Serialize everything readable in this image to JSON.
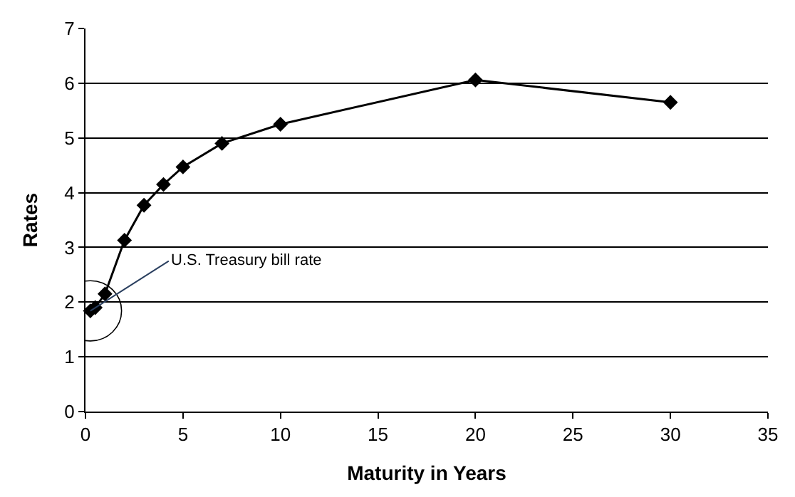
{
  "chart_data": {
    "type": "line",
    "xlabel": "Maturity in Years",
    "ylabel": "Rates",
    "x": [
      0.25,
      0.5,
      1,
      2,
      3,
      4,
      5,
      7,
      10,
      20,
      30
    ],
    "values": [
      1.84,
      1.9,
      2.15,
      3.13,
      3.77,
      4.15,
      4.47,
      4.9,
      5.25,
      6.06,
      5.65
    ],
    "color": "#000000",
    "marker": "diamond",
    "line_style": "solid",
    "xlim": [
      0,
      35
    ],
    "xticks": [
      0,
      5,
      10,
      15,
      20,
      25,
      30,
      35
    ],
    "ylim": [
      0,
      7
    ],
    "yticks": [
      0,
      1,
      2,
      3,
      4,
      5,
      6,
      7
    ],
    "grid": "y",
    "legend": false,
    "annotations": [
      {
        "text": "U.S. Treasury bill rate",
        "x": 0.25,
        "y": 1.84
      }
    ]
  }
}
